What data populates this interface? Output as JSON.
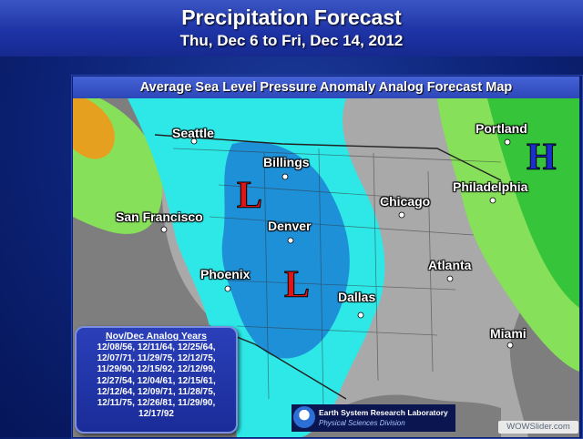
{
  "header": {
    "title": "Precipitation Forecast",
    "subtitle": "Thu, Dec 6 to Fri, Dec 14, 2012"
  },
  "map": {
    "title": "Average Sea Level Pressure Anomaly Analog Forecast Map",
    "low_label": "L",
    "high_label": "H",
    "colors": {
      "land": "#a9a9a9",
      "ocean": "#7e7e7e",
      "low_anomaly_light": "#2ee8e8",
      "low_anomaly_dark": "#1e90d8",
      "high_anomaly_light": "#86e05a",
      "high_anomaly_dark": "#36c43a",
      "low_letter": "#e01515",
      "high_letter": "#1a2fd0"
    },
    "cities": [
      {
        "name": "Seattle"
      },
      {
        "name": "Billings"
      },
      {
        "name": "Portland"
      },
      {
        "name": "San Francisco"
      },
      {
        "name": "Denver"
      },
      {
        "name": "Chicago"
      },
      {
        "name": "Philadelphia"
      },
      {
        "name": "Phoenix"
      },
      {
        "name": "Atlanta"
      },
      {
        "name": "Dallas"
      },
      {
        "name": "Miami"
      }
    ]
  },
  "analog_years": {
    "title": "Nov/Dec Analog Years",
    "lines": [
      "12/08/56, 12/11/64, 12/25/64,",
      "12/07/71, 11/29/75, 12/12/75,",
      "11/29/90, 12/15/92, 12/12/99,",
      "12/27/54, 12/04/61, 12/15/61,",
      "12/12/64, 12/09/71, 11/28/75,",
      "12/11/75, 12/26/81, 11/29/90,",
      "12/17/92"
    ]
  },
  "credits": {
    "lab_name": "Earth System Research Laboratory",
    "division": "Physical Sciences Division",
    "watermark": "WOWSlider.com"
  }
}
